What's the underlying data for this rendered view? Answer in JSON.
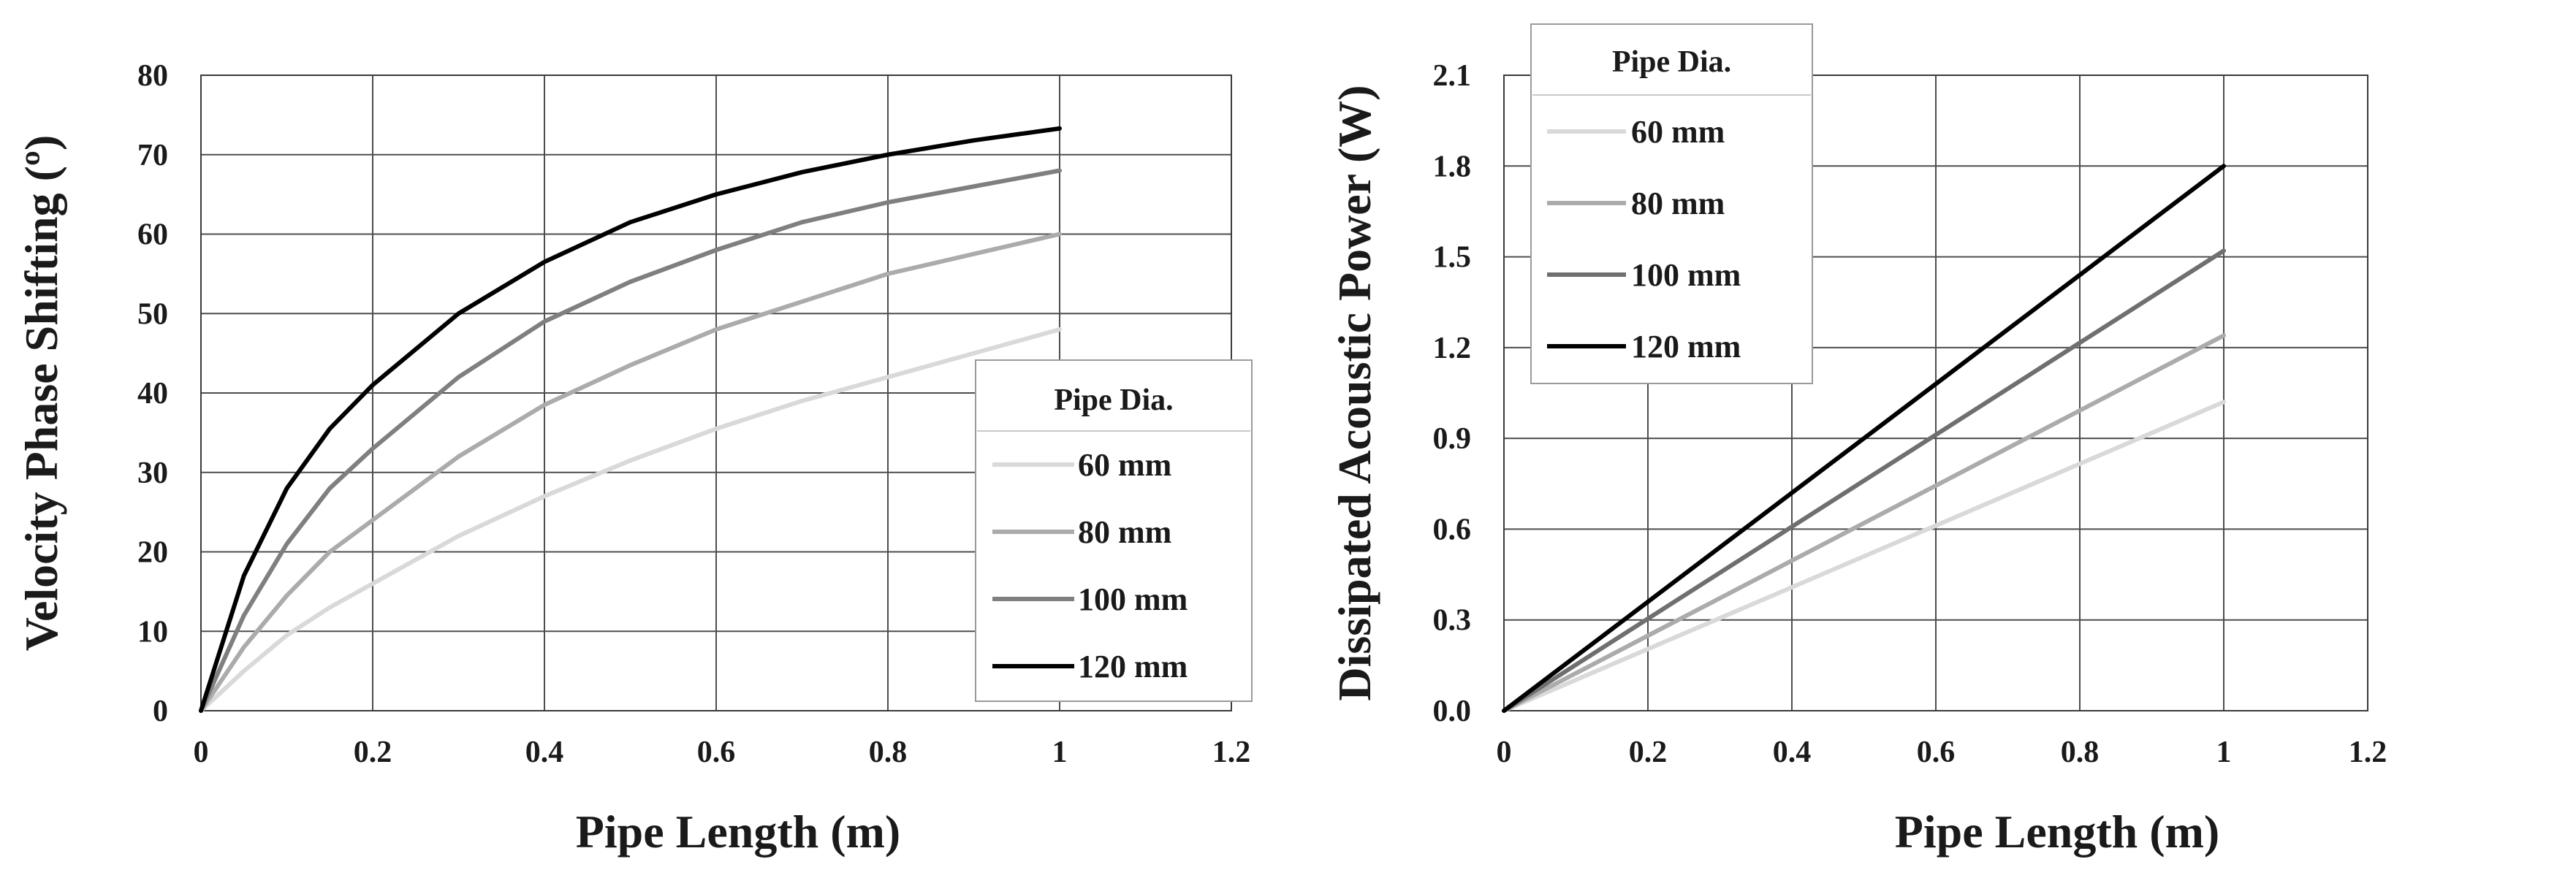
{
  "chart_data": [
    {
      "type": "line",
      "xlabel": "Pipe Length (m)",
      "ylabel": "Velocity Phase Shifting (º)",
      "xlim": [
        0,
        1.2
      ],
      "ylim": [
        0,
        80
      ],
      "xticks": [
        "0",
        "0.2",
        "0.4",
        "0.6",
        "0.8",
        "1",
        "1.2"
      ],
      "xtick_values": [
        0,
        0.2,
        0.4,
        0.6,
        0.8,
        1.0,
        1.2
      ],
      "yticks": [
        "0",
        "10",
        "20",
        "30",
        "40",
        "50",
        "60",
        "70",
        "80"
      ],
      "ytick_values": [
        0,
        10,
        20,
        30,
        40,
        50,
        60,
        70,
        80
      ],
      "grid": true,
      "legend_title": "Pipe Dia.",
      "legend_position": "center-right",
      "x": [
        0,
        0.05,
        0.1,
        0.15,
        0.2,
        0.3,
        0.4,
        0.5,
        0.6,
        0.7,
        0.8,
        0.9,
        1.0
      ],
      "series": [
        {
          "name": "60 mm",
          "color": "#d9d9d9",
          "values": [
            0,
            5,
            9.5,
            13,
            16,
            22,
            27,
            31.5,
            35.5,
            39,
            42,
            45,
            48
          ]
        },
        {
          "name": "80 mm",
          "color": "#ababab",
          "values": [
            0,
            8,
            14.5,
            20,
            24,
            32,
            38.5,
            43.5,
            48,
            51.5,
            55,
            57.5,
            60
          ]
        },
        {
          "name": "100 mm",
          "color": "#7f7f7f",
          "values": [
            0,
            12,
            21,
            28,
            33,
            42,
            49,
            54,
            58,
            61.5,
            64,
            66,
            68
          ]
        },
        {
          "name": "120 mm",
          "color": "#000000",
          "values": [
            0,
            17,
            28,
            35.5,
            41,
            50,
            56.5,
            61.5,
            65,
            67.8,
            70,
            71.8,
            73.3
          ]
        }
      ]
    },
    {
      "type": "line",
      "xlabel": "Pipe Length (m)",
      "ylabel": "Dissipated Acoustic Power (W)",
      "xlim": [
        0,
        1.2
      ],
      "ylim": [
        0,
        2.1
      ],
      "xticks": [
        "0",
        "0.2",
        "0.4",
        "0.6",
        "0.8",
        "1",
        "1.2"
      ],
      "xtick_values": [
        0,
        0.2,
        0.4,
        0.6,
        0.8,
        1.0,
        1.2
      ],
      "yticks": [
        "0.0",
        "0.3",
        "0.6",
        "0.9",
        "1.2",
        "1.5",
        "1.8",
        "2.1"
      ],
      "ytick_values": [
        0,
        0.3,
        0.6,
        0.9,
        1.2,
        1.5,
        1.8,
        2.1
      ],
      "grid": true,
      "legend_title": "Pipe Dia.",
      "legend_position": "top-left",
      "x": [
        0,
        1.0
      ],
      "series": [
        {
          "name": "60 mm",
          "color": "#d9d9d9",
          "values": [
            0,
            1.02
          ]
        },
        {
          "name": "80 mm",
          "color": "#ababab",
          "values": [
            0,
            1.24
          ]
        },
        {
          "name": "100 mm",
          "color": "#6f6f6f",
          "values": [
            0,
            1.52
          ]
        },
        {
          "name": "120 mm",
          "color": "#000000",
          "values": [
            0,
            1.8
          ]
        }
      ]
    }
  ]
}
